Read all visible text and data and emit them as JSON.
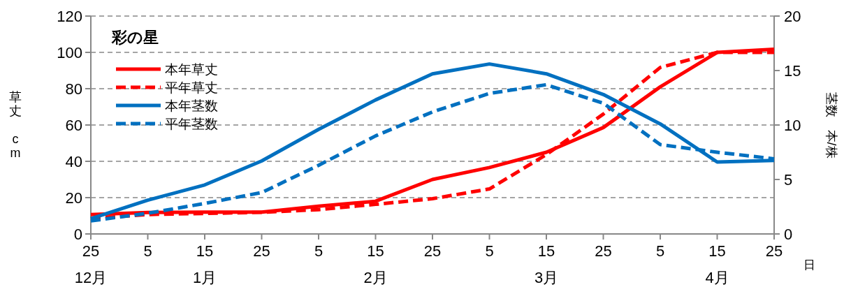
{
  "chart_data": {
    "type": "line",
    "ylabel": "草丈　cm",
    "y2label": "茎数　本/株",
    "xlabel": "日",
    "legend_title": "彩の星",
    "categories": [
      "25\n12月",
      "5",
      "15\n1月",
      "25",
      "5",
      "15\n2月",
      "25",
      "5",
      "15\n3月",
      "25",
      "5",
      "15\n4月",
      "25"
    ],
    "ylim": [
      0,
      120
    ],
    "yticks": [
      0,
      20,
      40,
      60,
      80,
      100,
      120
    ],
    "y2lim": [
      0,
      20
    ],
    "y2ticks": [
      0,
      5,
      10,
      15,
      20
    ],
    "grid": "y",
    "legend": "top left",
    "marker": "none",
    "series": [
      {
        "name": "本年草丈",
        "color": "#ff0000",
        "line_style": "solid",
        "values": [
          10.7,
          11.8,
          12,
          12,
          15.3,
          18,
          30,
          36.6,
          45,
          58.6,
          81,
          100,
          101.7
        ]
      },
      {
        "name": "平年草丈",
        "color": "#ff0000",
        "line_style": "dashed",
        "values": [
          8.5,
          10.7,
          11.3,
          11.9,
          13.4,
          16.3,
          19.4,
          24.8,
          43.7,
          66,
          91.7,
          100,
          100
        ]
      },
      {
        "name": "本年茎数",
        "color": "#0070c0",
        "line_style": "solid",
        "axis": "y2",
        "values": [
          1.4,
          3.1,
          4.5,
          6.7,
          9.6,
          12.3,
          14.7,
          15.6,
          14.7,
          12.8,
          10.1,
          6.6,
          6.75
        ]
      },
      {
        "name": "平年茎数",
        "color": "#0070c0",
        "line_style": "dashed",
        "axis": "y2",
        "values": [
          1.2,
          1.9,
          2.8,
          3.8,
          6.3,
          9,
          11.2,
          12.9,
          13.7,
          12,
          8.2,
          7.5,
          6.9
        ]
      }
    ]
  }
}
